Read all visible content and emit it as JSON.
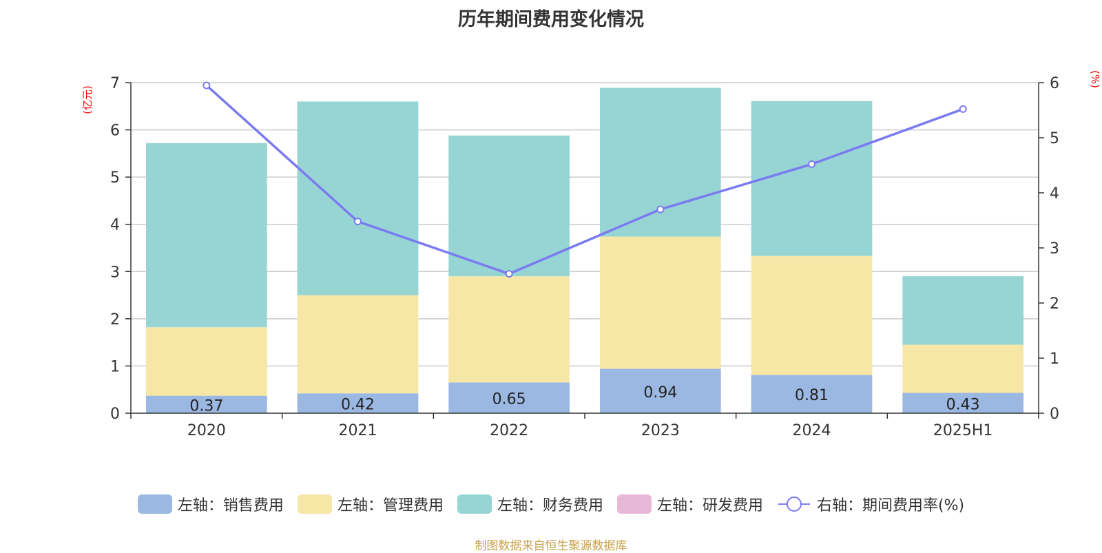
{
  "chart_data": {
    "type": "bar",
    "stacked": true,
    "title": "历年期间费用变化情况",
    "categories": [
      "2020",
      "2021",
      "2022",
      "2023",
      "2024",
      "2025H1"
    ],
    "ylabel_left": "(亿元)",
    "ylabel_right": "(%)",
    "ylim_left": [
      0,
      7
    ],
    "ylim_right": [
      0,
      6
    ],
    "yticks_left": [
      "0",
      "1",
      "2",
      "3",
      "4",
      "5",
      "6",
      "7"
    ],
    "yticks_right": [
      "0",
      "1",
      "2",
      "3",
      "4",
      "5",
      "6"
    ],
    "grid": true,
    "legend_position": "bottom",
    "series": [
      {
        "name": "左轴：销售费用",
        "axis": "left",
        "color": "#9bb8e2",
        "values": [
          0.37,
          0.42,
          0.65,
          0.94,
          0.81,
          0.43
        ],
        "labels": [
          "0.37",
          "0.42",
          "0.65",
          "0.94",
          "0.81",
          "0.43"
        ]
      },
      {
        "name": "左轴：管理费用",
        "axis": "left",
        "color": "#f7e7a7",
        "values": [
          1.45,
          2.08,
          2.25,
          2.8,
          2.52,
          1.02
        ]
      },
      {
        "name": "左轴：财务费用",
        "axis": "left",
        "color": "#97d4d4",
        "values": [
          3.9,
          4.1,
          2.98,
          3.15,
          3.28,
          1.45
        ]
      },
      {
        "name": "左轴：研发费用",
        "axis": "left",
        "color": "#e8b8d8",
        "values": [
          0,
          0,
          0,
          0,
          0,
          0
        ]
      },
      {
        "name": "右轴：期间费用率(%)",
        "axis": "right",
        "type": "line",
        "color": "#7b7bf0",
        "values": [
          5.95,
          3.48,
          2.53,
          3.7,
          4.52,
          5.52
        ]
      }
    ]
  },
  "source_note": "制图数据来自恒生聚源数据库"
}
